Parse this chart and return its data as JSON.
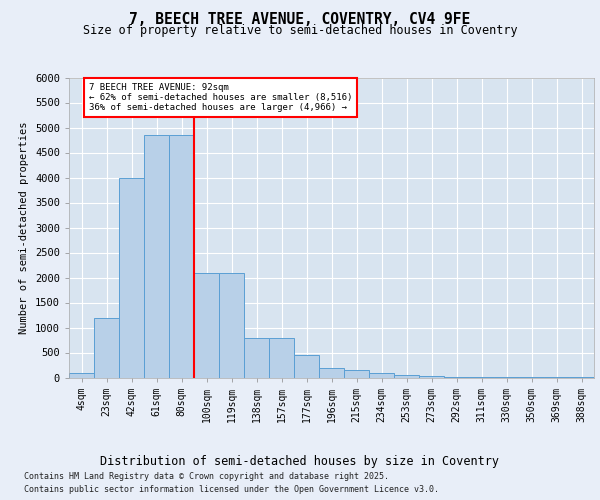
{
  "title_line1": "7, BEECH TREE AVENUE, COVENTRY, CV4 9FE",
  "title_line2": "Size of property relative to semi-detached houses in Coventry",
  "xlabel": "Distribution of semi-detached houses by size in Coventry",
  "ylabel": "Number of semi-detached properties",
  "footer_line1": "Contains HM Land Registry data © Crown copyright and database right 2025.",
  "footer_line2": "Contains public sector information licensed under the Open Government Licence v3.0.",
  "bar_labels": [
    "4sqm",
    "23sqm",
    "42sqm",
    "61sqm",
    "80sqm",
    "100sqm",
    "119sqm",
    "138sqm",
    "157sqm",
    "177sqm",
    "196sqm",
    "215sqm",
    "234sqm",
    "253sqm",
    "273sqm",
    "292sqm",
    "311sqm",
    "330sqm",
    "350sqm",
    "369sqm",
    "388sqm"
  ],
  "bar_values": [
    100,
    1200,
    4000,
    4850,
    4850,
    2100,
    2100,
    800,
    800,
    450,
    200,
    150,
    100,
    50,
    30,
    10,
    5,
    2,
    2,
    1,
    1
  ],
  "bar_color": "#b8d0e8",
  "bar_edge_color": "#5a9fd4",
  "vline_color": "red",
  "vline_label_property": "7 BEECH TREE AVENUE: 92sqm",
  "vline_label_smaller": "← 62% of semi-detached houses are smaller (8,516)",
  "vline_label_larger": "36% of semi-detached houses are larger (4,966) →",
  "ylim": [
    0,
    6000
  ],
  "yticks": [
    0,
    500,
    1000,
    1500,
    2000,
    2500,
    3000,
    3500,
    4000,
    4500,
    5000,
    5500,
    6000
  ],
  "background_color": "#e8eef8",
  "plot_background": "#d8e4f0"
}
